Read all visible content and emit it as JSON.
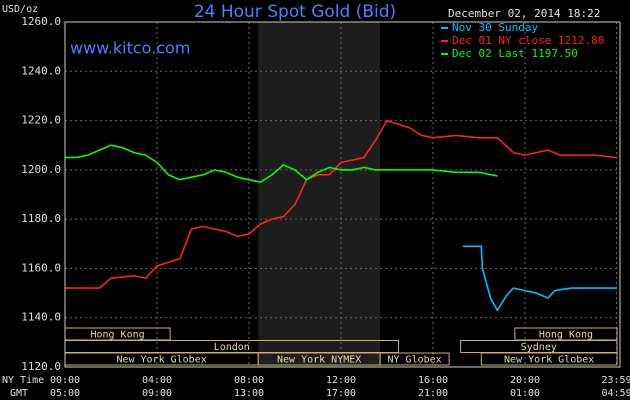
{
  "chart_data": {
    "type": "line",
    "title": "24 Hour Spot Gold (Bid)",
    "date": "December 02, 2014 18:22",
    "y_label": "USD/oz",
    "watermark": "www.kitco.com",
    "x_row_labels": [
      "NY Time",
      "GMT"
    ],
    "xlim": [
      0,
      24
    ],
    "ylim": [
      1120,
      1260
    ],
    "grid": true,
    "yticks": [
      {
        "value": 1120,
        "label": "1120.0"
      },
      {
        "value": 1140,
        "label": "1140.0"
      },
      {
        "value": 1160,
        "label": "1160.0"
      },
      {
        "value": 1180,
        "label": "1180.0"
      },
      {
        "value": 1200,
        "label": "1200.0"
      },
      {
        "value": 1220,
        "label": "1220.0"
      },
      {
        "value": 1240,
        "label": "1240.0"
      },
      {
        "value": 1260,
        "label": "1260.0"
      }
    ],
    "xticks": [
      {
        "value": 0,
        "label": "00:00"
      },
      {
        "value": 4,
        "label": "04:00"
      },
      {
        "value": 8,
        "label": "08:00"
      },
      {
        "value": 12,
        "label": "12:00"
      },
      {
        "value": 16,
        "label": "16:00"
      },
      {
        "value": 20,
        "label": "20:00"
      },
      {
        "value": 23.98,
        "label": "23:59"
      }
    ],
    "x2ticks": [
      {
        "value": 0,
        "label": "05:00"
      },
      {
        "value": 4,
        "label": "09:00"
      },
      {
        "value": 8,
        "label": "13:00"
      },
      {
        "value": 12,
        "label": "17:00"
      },
      {
        "value": 16,
        "label": "21:00"
      },
      {
        "value": 20,
        "label": "01:00"
      },
      {
        "value": 23.98,
        "label": "04:59"
      }
    ],
    "highlight": [
      8.4,
      13.7
    ],
    "sessions": [
      {
        "label": "Hong Kong",
        "start": 0,
        "end": 4.57,
        "row": 0
      },
      {
        "label": "Hong Kong",
        "start": 19.56,
        "end": 24,
        "row": 0
      },
      {
        "label": "London",
        "start": 0,
        "end": 14.5,
        "row": 1
      },
      {
        "label": "Sydney",
        "start": 17.2,
        "end": 24,
        "row": 1
      },
      {
        "label": "New York Globex",
        "start": 0,
        "end": 8.4,
        "row": 2
      },
      {
        "label": "New York NYMEX",
        "start": 8.4,
        "end": 13.7,
        "row": 2
      },
      {
        "label": "NY Globex",
        "start": 13.7,
        "end": 16.7,
        "row": 2
      },
      {
        "label": "New York Globex",
        "start": 18.1,
        "end": 24,
        "row": 2
      }
    ],
    "series": [
      {
        "name": "Nov 30 Sunday",
        "color": "#00bfff",
        "x": [
          17.3,
          18.1,
          18.15,
          18.5,
          18.8,
          19.2,
          19.5,
          20,
          20.5,
          21,
          21.3,
          22,
          23,
          24
        ],
        "values": [
          1169,
          1169,
          1160,
          1148,
          1143,
          1149,
          1152,
          1151,
          1150,
          1148,
          1151,
          1152,
          1152,
          1152
        ]
      },
      {
        "name": "Dec 01 NY close 1212.80",
        "color": "#ff2020",
        "x": [
          0,
          1,
          1.5,
          2,
          3,
          3.5,
          4,
          5,
          5.5,
          6,
          7,
          7.5,
          8,
          8.5,
          9,
          9.5,
          10,
          10.5,
          11,
          11.5,
          12,
          13,
          13.5,
          14,
          15,
          15.5,
          16,
          17,
          18,
          18.8,
          19.5,
          20,
          21,
          21.5,
          22,
          23,
          24
        ],
        "values": [
          1152,
          1152,
          1152,
          1156,
          1157,
          1156,
          1161,
          1164,
          1176,
          1177,
          1175,
          1173,
          1174,
          1178,
          1180,
          1181,
          1186,
          1196,
          1198,
          1198,
          1203,
          1205,
          1212,
          1220,
          1217,
          1214,
          1213,
          1214,
          1213,
          1213,
          1207,
          1206,
          1208,
          1206,
          1206,
          1206,
          1205
        ]
      },
      {
        "name": "Dec 02 Last 1197.50",
        "color": "#00ff00",
        "x": [
          0,
          0.5,
          1,
          1.5,
          2,
          2.5,
          3,
          3.5,
          4,
          4.5,
          5,
          5.5,
          6,
          6.5,
          7,
          7.5,
          8,
          8.5,
          9,
          9.5,
          10,
          10.5,
          11,
          11.5,
          12,
          12.5,
          13,
          13.5,
          14,
          15,
          16,
          17,
          18,
          18.8
        ],
        "values": [
          1205,
          1205,
          1206,
          1208,
          1210,
          1209,
          1207,
          1206,
          1203,
          1198,
          1196,
          1197,
          1198,
          1200,
          1199,
          1197,
          1196,
          1195,
          1198,
          1202,
          1200,
          1196,
          1199,
          1201,
          1200,
          1200,
          1201,
          1200,
          1200,
          1200,
          1200,
          1199,
          1199,
          1197.5
        ]
      }
    ]
  }
}
